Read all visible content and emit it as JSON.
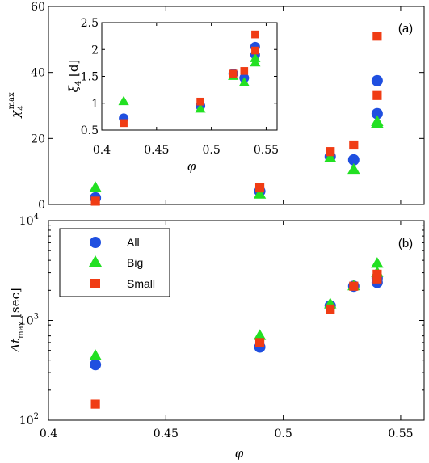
{
  "colors": {
    "all": "#1f4fe0",
    "big": "#22e022",
    "small": "#f03c14"
  },
  "legend": {
    "all": "All",
    "big": "Big",
    "small": "Small"
  },
  "chart_data": [
    {
      "id": "top",
      "type": "scatter",
      "panel_label": "(a)",
      "ylabel": "χ₄ max",
      "xlim": [
        0.4,
        0.56
      ],
      "ylim": [
        0,
        60
      ],
      "xticks": [
        0.4,
        0.45,
        0.5,
        0.55
      ],
      "yticks": [
        0,
        20,
        40,
        60
      ],
      "ytick_labels": [
        "0",
        "20",
        "40",
        "60"
      ],
      "series": [
        {
          "name": "All",
          "marker": "circle",
          "x": [
            0.42,
            0.49,
            0.52,
            0.53,
            0.54,
            0.54
          ],
          "y": [
            2,
            4,
            14.5,
            13.5,
            27.5,
            37.5
          ]
        },
        {
          "name": "Big",
          "marker": "triangle",
          "x": [
            0.42,
            0.49,
            0.52,
            0.53,
            0.54,
            0.54
          ],
          "y": [
            5,
            3,
            14,
            10.5,
            24.5,
            25
          ]
        },
        {
          "name": "Small",
          "marker": "square",
          "x": [
            0.42,
            0.49,
            0.52,
            0.53,
            0.54,
            0.54
          ],
          "y": [
            1,
            5,
            16,
            18,
            33,
            51
          ]
        }
      ]
    },
    {
      "id": "inset",
      "type": "scatter",
      "ylabel": "ξ₄ [d]",
      "xlabel": "φ",
      "xlim": [
        0.4,
        0.56
      ],
      "ylim": [
        0.5,
        2.5
      ],
      "xticks": [
        0.4,
        0.45,
        0.5,
        0.55
      ],
      "yticks": [
        0.5,
        1,
        1.5,
        2,
        2.5
      ],
      "ytick_labels": [
        "0.5",
        "1",
        "1.5",
        "2",
        "2.5"
      ],
      "series": [
        {
          "name": "All",
          "marker": "circle",
          "x": [
            0.42,
            0.49,
            0.52,
            0.53,
            0.54,
            0.54
          ],
          "y": [
            0.72,
            0.95,
            1.55,
            1.47,
            2.05,
            1.9
          ]
        },
        {
          "name": "Big",
          "marker": "triangle",
          "x": [
            0.42,
            0.49,
            0.52,
            0.53,
            0.54,
            0.54
          ],
          "y": [
            1.03,
            0.89,
            1.5,
            1.38,
            1.75,
            1.83
          ]
        },
        {
          "name": "Small",
          "marker": "square",
          "x": [
            0.42,
            0.49,
            0.52,
            0.53,
            0.54,
            0.54
          ],
          "y": [
            0.63,
            1.03,
            1.55,
            1.6,
            1.98,
            2.28
          ]
        }
      ]
    },
    {
      "id": "bottom",
      "type": "scatter",
      "panel_label": "(b)",
      "ylabel": "Δt max [sec]",
      "xlabel": "φ",
      "xlim": [
        0.4,
        0.56
      ],
      "ylim": [
        100,
        10000
      ],
      "yscale": "log",
      "xticks": [
        0.4,
        0.45,
        0.5,
        0.55
      ],
      "yticks": [
        100,
        1000,
        10000
      ],
      "ytick_labels": [
        "10",
        "10",
        "10"
      ],
      "ytick_exponents": [
        "2",
        "3",
        "4"
      ],
      "legend_position": "top-left",
      "series": [
        {
          "name": "All",
          "marker": "circle",
          "x": [
            0.42,
            0.49,
            0.52,
            0.53,
            0.54,
            0.54
          ],
          "y": [
            360,
            540,
            1400,
            2200,
            2400,
            2650
          ]
        },
        {
          "name": "Big",
          "marker": "triangle",
          "x": [
            0.42,
            0.49,
            0.52,
            0.53,
            0.54,
            0.54
          ],
          "y": [
            440,
            700,
            1450,
            2200,
            3000,
            3700
          ]
        },
        {
          "name": "Small",
          "marker": "square",
          "x": [
            0.42,
            0.49,
            0.52,
            0.53,
            0.54,
            0.54
          ],
          "y": [
            145,
            600,
            1300,
            2200,
            2600,
            2900
          ]
        }
      ]
    }
  ]
}
